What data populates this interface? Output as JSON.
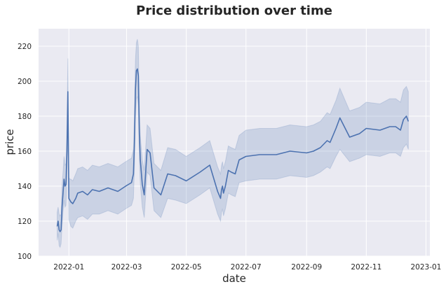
{
  "chart_data": {
    "type": "line",
    "title": "Price distribution over time",
    "xlabel": "date",
    "ylabel": "price",
    "x_ticks": [
      "2022-01",
      "2022-03",
      "2022-05",
      "2022-07",
      "2022-09",
      "2022-11",
      "2023-01"
    ],
    "y_ticks": [
      "100",
      "120",
      "140",
      "160",
      "180",
      "200",
      "220"
    ],
    "xlim": [
      "2021-12-01",
      "2023-01-05"
    ],
    "ylim": [
      100,
      230
    ],
    "grid": true,
    "confidence_band": true,
    "colors": {
      "line": "#4c72b0",
      "band": "#4c72b0",
      "background": "#eaeaf2",
      "grid": "#ffffff"
    },
    "series": [
      {
        "x": [
          "2021-12-20",
          "2021-12-21",
          "2021-12-22",
          "2021-12-23",
          "2021-12-24",
          "2021-12-25",
          "2021-12-26",
          "2021-12-27",
          "2021-12-28",
          "2021-12-29",
          "2021-12-30",
          "2021-12-31",
          "2022-01-01",
          "2022-01-02",
          "2022-01-03",
          "2022-01-05",
          "2022-01-08",
          "2022-01-10",
          "2022-01-15",
          "2022-01-20",
          "2022-01-25",
          "2022-02-01",
          "2022-02-10",
          "2022-02-20",
          "2022-02-28",
          "2022-03-03",
          "2022-03-06",
          "2022-03-08",
          "2022-03-09",
          "2022-03-10",
          "2022-03-11",
          "2022-03-12",
          "2022-03-13",
          "2022-03-14",
          "2022-03-15",
          "2022-03-17",
          "2022-03-19",
          "2022-03-22",
          "2022-03-25",
          "2022-03-29",
          "2022-04-05",
          "2022-04-12",
          "2022-04-20",
          "2022-05-01",
          "2022-05-15",
          "2022-05-25",
          "2022-06-02",
          "2022-06-05",
          "2022-06-06",
          "2022-06-07",
          "2022-06-08",
          "2022-06-10",
          "2022-06-13",
          "2022-06-16",
          "2022-06-20",
          "2022-06-24",
          "2022-07-01",
          "2022-07-15",
          "2022-08-01",
          "2022-08-15",
          "2022-09-01",
          "2022-09-08",
          "2022-09-15",
          "2022-09-22",
          "2022-09-25",
          "2022-10-01",
          "2022-10-05",
          "2022-10-15",
          "2022-10-25",
          "2022-11-01",
          "2022-11-15",
          "2022-11-25",
          "2022-12-01",
          "2022-12-06",
          "2022-12-09",
          "2022-12-12",
          "2022-12-14"
        ],
        "y": [
          117,
          120,
          115,
          114,
          115,
          128,
          136,
          144,
          140,
          141,
          160,
          194,
          133,
          132,
          131,
          130,
          133,
          136,
          137,
          135,
          138,
          137,
          139,
          137,
          140,
          141,
          142,
          147,
          165,
          195,
          206,
          207,
          203,
          170,
          155,
          141,
          135,
          161,
          159,
          139,
          135,
          147,
          146,
          143,
          148,
          152,
          137,
          133,
          138,
          140,
          136,
          140,
          149,
          148,
          147,
          155,
          157,
          158,
          158,
          160,
          159,
          160,
          162,
          166,
          165,
          173,
          179,
          168,
          170,
          173,
          172,
          174,
          174,
          172,
          178,
          180,
          177
        ],
        "lower": [
          109,
          113,
          106,
          105,
          107,
          117,
          125,
          132,
          128,
          129,
          146,
          175,
          121,
          119,
          117,
          116,
          120,
          122,
          123,
          121,
          124,
          124,
          126,
          124,
          127,
          128,
          129,
          133,
          150,
          178,
          190,
          191,
          186,
          155,
          141,
          128,
          122,
          148,
          146,
          126,
          122,
          133,
          132,
          130,
          135,
          139,
          124,
          120,
          125,
          127,
          123,
          127,
          136,
          135,
          134,
          142,
          143,
          144,
          144,
          146,
          145,
          146,
          148,
          151,
          150,
          157,
          161,
          154,
          156,
          158,
          157,
          159,
          159,
          157,
          162,
          164,
          161
        ],
        "upper": [
          125,
          128,
          124,
          123,
          124,
          140,
          148,
          157,
          152,
          153,
          175,
          213,
          145,
          144,
          144,
          143,
          147,
          150,
          151,
          149,
          152,
          151,
          153,
          151,
          154,
          155,
          156,
          161,
          181,
          212,
          222,
          224,
          220,
          186,
          169,
          155,
          149,
          175,
          173,
          153,
          149,
          162,
          161,
          157,
          162,
          166,
          151,
          147,
          152,
          154,
          150,
          154,
          163,
          162,
          161,
          169,
          172,
          173,
          173,
          175,
          174,
          175,
          177,
          182,
          181,
          189,
          196,
          183,
          185,
          188,
          187,
          190,
          190,
          188,
          195,
          197,
          194
        ]
      }
    ]
  }
}
